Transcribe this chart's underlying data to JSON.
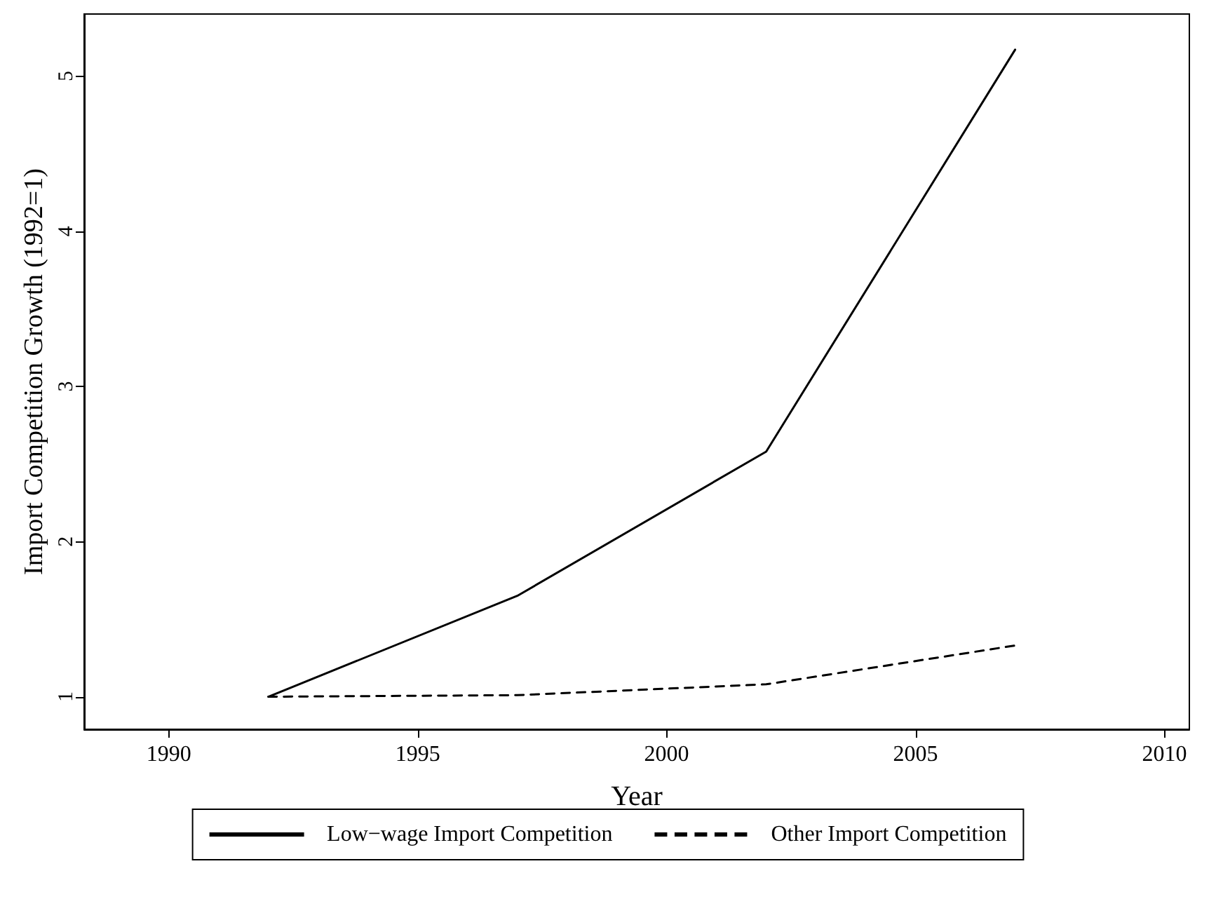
{
  "chart_data": {
    "type": "line",
    "xlabel": "Year",
    "ylabel": "Import Competition Growth (1992=1)",
    "x": [
      1992,
      1997,
      2002,
      2007
    ],
    "series": [
      {
        "name": "Low−wage Import Competition",
        "color": "#000000",
        "line_style": "solid",
        "values": [
          1.0,
          1.65,
          2.58,
          5.17
        ]
      },
      {
        "name": "Other Import Competition",
        "color": "#000000",
        "line_style": "dashed",
        "values": [
          1.0,
          1.01,
          1.08,
          1.33
        ]
      }
    ],
    "xlim": [
      1988.3,
      2010.5
    ],
    "xticks": [
      1990,
      1995,
      2000,
      2005,
      2010
    ],
    "ylim": [
      0.79,
      5.4
    ],
    "yticks": [
      1,
      2,
      3,
      4,
      5
    ],
    "grid": false,
    "legend": "bottom",
    "marker": "none"
  }
}
